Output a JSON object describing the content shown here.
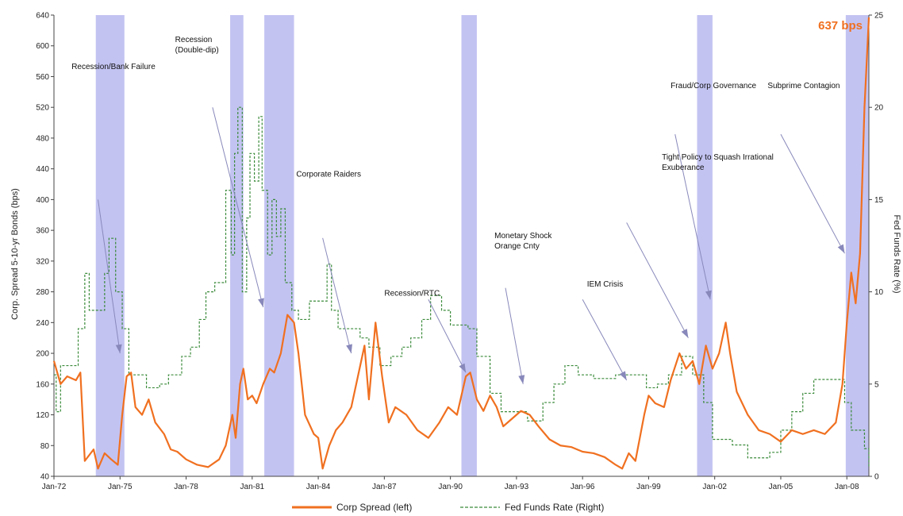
{
  "chart_data": {
    "type": "line",
    "ylabel_left": "Corp. Spread 5-10-yr Bonds (bps)",
    "ylabel_right": "Fed Funds Rate (%)",
    "ylim_left": [
      40,
      640
    ],
    "yticks_left": [
      40,
      80,
      120,
      160,
      200,
      240,
      280,
      320,
      360,
      400,
      440,
      480,
      520,
      560,
      600,
      640
    ],
    "ylim_right": [
      0,
      25
    ],
    "yticks_right": [
      0,
      5,
      10,
      15,
      20,
      25
    ],
    "xlim": [
      1972.0,
      2009.0
    ],
    "xticks": [
      {
        "x": 1972.0,
        "label": "Jan-72"
      },
      {
        "x": 1975.0,
        "label": "Jan-75"
      },
      {
        "x": 1978.0,
        "label": "Jan-78"
      },
      {
        "x": 1981.0,
        "label": "Jan-81"
      },
      {
        "x": 1984.0,
        "label": "Jan-84"
      },
      {
        "x": 1987.0,
        "label": "Jan-87"
      },
      {
        "x": 1990.0,
        "label": "Jan-90"
      },
      {
        "x": 1993.0,
        "label": "Jan-93"
      },
      {
        "x": 1996.0,
        "label": "Jan-96"
      },
      {
        "x": 1999.0,
        "label": "Jan-99"
      },
      {
        "x": 2002.0,
        "label": "Jan-02"
      },
      {
        "x": 2005.0,
        "label": "Jan-05"
      },
      {
        "x": 2008.0,
        "label": "Jan-08"
      }
    ],
    "recessions": [
      [
        1973.9,
        1975.2
      ],
      [
        1980.0,
        1980.6
      ],
      [
        1981.55,
        1982.9
      ],
      [
        1990.5,
        1991.2
      ],
      [
        2001.2,
        2001.9
      ],
      [
        2007.95,
        2009.0
      ]
    ],
    "series": [
      {
        "name": "Corp Spread (left)",
        "axis": "left",
        "color": "#f07020",
        "points": [
          [
            1972.0,
            190
          ],
          [
            1972.3,
            160
          ],
          [
            1972.6,
            170
          ],
          [
            1973.0,
            165
          ],
          [
            1973.2,
            175
          ],
          [
            1973.4,
            60
          ],
          [
            1973.8,
            75
          ],
          [
            1974.0,
            50
          ],
          [
            1974.3,
            70
          ],
          [
            1974.6,
            62
          ],
          [
            1974.9,
            55
          ],
          [
            1975.1,
            120
          ],
          [
            1975.3,
            170
          ],
          [
            1975.5,
            175
          ],
          [
            1975.7,
            130
          ],
          [
            1976.0,
            120
          ],
          [
            1976.3,
            140
          ],
          [
            1976.6,
            110
          ],
          [
            1977.0,
            95
          ],
          [
            1977.3,
            75
          ],
          [
            1977.6,
            72
          ],
          [
            1978.0,
            62
          ],
          [
            1978.5,
            55
          ],
          [
            1979.0,
            52
          ],
          [
            1979.5,
            62
          ],
          [
            1979.8,
            80
          ],
          [
            1980.1,
            120
          ],
          [
            1980.25,
            90
          ],
          [
            1980.45,
            160
          ],
          [
            1980.6,
            180
          ],
          [
            1980.8,
            140
          ],
          [
            1981.0,
            145
          ],
          [
            1981.2,
            135
          ],
          [
            1981.5,
            160
          ],
          [
            1981.8,
            180
          ],
          [
            1982.0,
            175
          ],
          [
            1982.3,
            200
          ],
          [
            1982.6,
            250
          ],
          [
            1982.9,
            240
          ],
          [
            1983.1,
            200
          ],
          [
            1983.4,
            120
          ],
          [
            1983.8,
            95
          ],
          [
            1984.0,
            90
          ],
          [
            1984.2,
            50
          ],
          [
            1984.5,
            80
          ],
          [
            1984.8,
            100
          ],
          [
            1985.1,
            110
          ],
          [
            1985.5,
            130
          ],
          [
            1985.8,
            170
          ],
          [
            1986.1,
            210
          ],
          [
            1986.3,
            140
          ],
          [
            1986.6,
            240
          ],
          [
            1986.9,
            170
          ],
          [
            1987.2,
            110
          ],
          [
            1987.5,
            130
          ],
          [
            1988.0,
            120
          ],
          [
            1988.5,
            100
          ],
          [
            1989.0,
            90
          ],
          [
            1989.5,
            110
          ],
          [
            1989.9,
            130
          ],
          [
            1990.3,
            120
          ],
          [
            1990.7,
            170
          ],
          [
            1990.9,
            175
          ],
          [
            1991.2,
            140
          ],
          [
            1991.5,
            125
          ],
          [
            1991.8,
            145
          ],
          [
            1992.1,
            130
          ],
          [
            1992.4,
            105
          ],
          [
            1992.8,
            115
          ],
          [
            1993.2,
            125
          ],
          [
            1993.6,
            120
          ],
          [
            1994.0,
            105
          ],
          [
            1994.5,
            88
          ],
          [
            1995.0,
            80
          ],
          [
            1995.5,
            78
          ],
          [
            1996.0,
            72
          ],
          [
            1996.5,
            70
          ],
          [
            1997.0,
            65
          ],
          [
            1997.5,
            55
          ],
          [
            1997.8,
            50
          ],
          [
            1998.1,
            70
          ],
          [
            1998.4,
            60
          ],
          [
            1998.8,
            120
          ],
          [
            1999.0,
            145
          ],
          [
            1999.3,
            135
          ],
          [
            1999.7,
            130
          ],
          [
            2000.0,
            165
          ],
          [
            2000.4,
            200
          ],
          [
            2000.7,
            180
          ],
          [
            2001.0,
            190
          ],
          [
            2001.3,
            160
          ],
          [
            2001.6,
            210
          ],
          [
            2001.9,
            180
          ],
          [
            2002.2,
            200
          ],
          [
            2002.5,
            240
          ],
          [
            2002.7,
            200
          ],
          [
            2003.0,
            150
          ],
          [
            2003.5,
            120
          ],
          [
            2004.0,
            100
          ],
          [
            2004.5,
            95
          ],
          [
            2005.0,
            85
          ],
          [
            2005.5,
            100
          ],
          [
            2006.0,
            95
          ],
          [
            2006.5,
            100
          ],
          [
            2007.0,
            95
          ],
          [
            2007.5,
            110
          ],
          [
            2007.8,
            160
          ],
          [
            2008.0,
            240
          ],
          [
            2008.2,
            305
          ],
          [
            2008.4,
            265
          ],
          [
            2008.6,
            330
          ],
          [
            2008.8,
            520
          ],
          [
            2009.0,
            637
          ]
        ]
      },
      {
        "name": "Fed Funds Rate (Right)",
        "axis": "right",
        "color": "#3a8a3a",
        "points": [
          [
            1972.0,
            5.5
          ],
          [
            1972.1,
            3.5
          ],
          [
            1972.3,
            6.0
          ],
          [
            1972.9,
            6.0
          ],
          [
            1973.1,
            8.0
          ],
          [
            1973.4,
            11.0
          ],
          [
            1973.6,
            9.0
          ],
          [
            1974.0,
            9.0
          ],
          [
            1974.3,
            11.0
          ],
          [
            1974.5,
            12.9
          ],
          [
            1974.8,
            10.0
          ],
          [
            1975.1,
            8.0
          ],
          [
            1975.4,
            5.5
          ],
          [
            1975.8,
            5.5
          ],
          [
            1976.2,
            4.8
          ],
          [
            1976.8,
            5.0
          ],
          [
            1977.2,
            5.5
          ],
          [
            1977.8,
            6.5
          ],
          [
            1978.2,
            7.0
          ],
          [
            1978.6,
            8.5
          ],
          [
            1978.9,
            10.0
          ],
          [
            1979.3,
            10.5
          ],
          [
            1979.8,
            15.5
          ],
          [
            1980.05,
            12.0
          ],
          [
            1980.2,
            17.5
          ],
          [
            1980.35,
            20.0
          ],
          [
            1980.55,
            10.0
          ],
          [
            1980.75,
            14.0
          ],
          [
            1980.9,
            17.5
          ],
          [
            1981.1,
            16.0
          ],
          [
            1981.3,
            19.5
          ],
          [
            1981.45,
            15.5
          ],
          [
            1981.7,
            12.0
          ],
          [
            1981.9,
            15.0
          ],
          [
            1982.1,
            13.0
          ],
          [
            1982.3,
            14.5
          ],
          [
            1982.5,
            10.5
          ],
          [
            1982.8,
            9.0
          ],
          [
            1983.1,
            8.5
          ],
          [
            1983.6,
            9.5
          ],
          [
            1984.0,
            9.5
          ],
          [
            1984.4,
            11.5
          ],
          [
            1984.6,
            9.0
          ],
          [
            1984.9,
            8.0
          ],
          [
            1985.4,
            8.0
          ],
          [
            1985.9,
            7.5
          ],
          [
            1986.3,
            7.0
          ],
          [
            1986.8,
            6.0
          ],
          [
            1987.3,
            6.5
          ],
          [
            1987.8,
            7.0
          ],
          [
            1988.2,
            7.5
          ],
          [
            1988.7,
            8.5
          ],
          [
            1989.1,
            9.8
          ],
          [
            1989.6,
            9.0
          ],
          [
            1990.0,
            8.2
          ],
          [
            1990.8,
            8.0
          ],
          [
            1991.2,
            6.5
          ],
          [
            1991.8,
            4.5
          ],
          [
            1992.3,
            3.5
          ],
          [
            1993.5,
            3.0
          ],
          [
            1994.2,
            4.0
          ],
          [
            1994.7,
            5.0
          ],
          [
            1995.2,
            6.0
          ],
          [
            1995.8,
            5.5
          ],
          [
            1996.5,
            5.3
          ],
          [
            1997.5,
            5.5
          ],
          [
            1998.5,
            5.5
          ],
          [
            1998.9,
            4.8
          ],
          [
            1999.4,
            5.0
          ],
          [
            1999.9,
            5.5
          ],
          [
            2000.5,
            6.5
          ],
          [
            2001.0,
            5.5
          ],
          [
            2001.5,
            4.0
          ],
          [
            2001.9,
            2.0
          ],
          [
            2002.8,
            1.7
          ],
          [
            2003.5,
            1.0
          ],
          [
            2004.5,
            1.3
          ],
          [
            2005.0,
            2.5
          ],
          [
            2005.5,
            3.5
          ],
          [
            2006.0,
            4.5
          ],
          [
            2006.5,
            5.25
          ],
          [
            2007.6,
            5.25
          ],
          [
            2007.9,
            4.0
          ],
          [
            2008.2,
            2.5
          ],
          [
            2008.8,
            1.5
          ],
          [
            2009.0,
            0.5
          ]
        ]
      }
    ],
    "annotations": [
      {
        "lines": [
          "Recession/Bank Failure"
        ],
        "tx": 1972.8,
        "ty": 570,
        "ax0": 1974.0,
        "ay0": 400,
        "ax1": 1975.0,
        "ay1": 200
      },
      {
        "lines": [
          "Recession",
          "(Double-dip)"
        ],
        "tx": 1977.5,
        "ty": 605,
        "ax0": 1979.2,
        "ay0": 520,
        "ax1": 1981.5,
        "ay1": 260
      },
      {
        "lines": [
          "Corporate Raiders"
        ],
        "tx": 1983.0,
        "ty": 430,
        "ax0": 1984.2,
        "ay0": 350,
        "ax1": 1985.5,
        "ay1": 200
      },
      {
        "lines": [
          "Recession/RTC"
        ],
        "tx": 1987.0,
        "ty": 275,
        "ax0": 1989.0,
        "ay0": 270,
        "ax1": 1990.7,
        "ay1": 175
      },
      {
        "lines": [
          "Monetary Shock",
          "Orange Cnty"
        ],
        "tx": 1992.0,
        "ty": 350,
        "ax0": 1992.5,
        "ay0": 285,
        "ax1": 1993.3,
        "ay1": 160
      },
      {
        "lines": [
          "IEM Crisis"
        ],
        "tx": 1996.2,
        "ty": 287,
        "ax0": 1996.0,
        "ay0": 270,
        "ax1": 1998.0,
        "ay1": 165
      },
      {
        "lines": [
          "Tight Policy to Squash Irrational",
          "Exuberance"
        ],
        "tx": 1999.6,
        "ty": 452,
        "ax0": 1998.0,
        "ay0": 370,
        "ax1": 2000.8,
        "ay1": 220
      },
      {
        "lines": [
          "Fraud/Corp Governance"
        ],
        "tx": 2000.0,
        "ty": 545,
        "ax0": 2000.2,
        "ay0": 485,
        "ax1": 2001.8,
        "ay1": 270
      },
      {
        "lines": [
          "Subprime Contagion"
        ],
        "tx": 2004.4,
        "ty": 545,
        "ax0": 2005.0,
        "ay0": 485,
        "ax1": 2007.9,
        "ay1": 330
      }
    ],
    "callout": "637 bps",
    "callout_color": "#f07020",
    "recession_color": "#b8b8f0",
    "arrow_color": "#8888bb"
  }
}
